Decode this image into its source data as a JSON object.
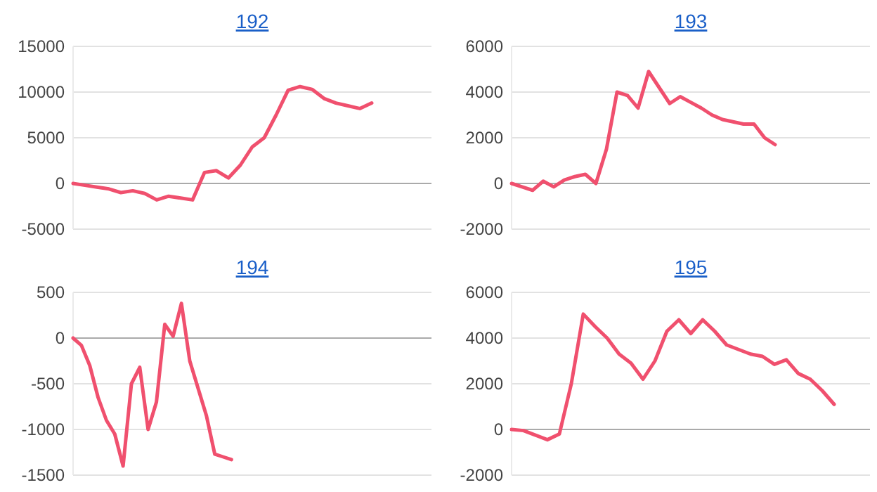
{
  "chart_data": [
    {
      "type": "line",
      "title": "192",
      "categories": [
        null,
        null,
        null,
        null,
        null,
        null,
        null,
        null,
        null,
        null,
        null,
        null,
        null,
        null,
        null,
        null,
        null,
        null,
        null,
        null,
        null,
        null,
        null,
        null,
        null,
        null,
        null,
        null,
        null,
        null,
        null
      ],
      "series": [
        {
          "color": "#f0506e",
          "values": [
            0,
            -200,
            -400,
            -600,
            -1000,
            -800,
            -1100,
            -1800,
            -1400,
            -1600,
            -1800,
            1200,
            1400,
            600,
            2000,
            4000,
            5000,
            7500,
            10200,
            10600,
            10300,
            9300,
            8800,
            8500,
            8200,
            8800,
            null,
            null,
            null,
            null,
            null
          ]
        }
      ],
      "ylim": [
        -5000,
        15000
      ],
      "yticks": [
        -5000,
        0,
        5000,
        10000,
        15000
      ],
      "grid": "y",
      "tick_labels": "y"
    },
    {
      "type": "line",
      "title": "193",
      "categories": [
        null,
        null,
        null,
        null,
        null,
        null,
        null,
        null,
        null,
        null,
        null,
        null,
        null,
        null,
        null,
        null,
        null,
        null,
        null,
        null,
        null,
        null,
        null,
        null,
        null,
        null,
        null,
        null,
        null,
        null,
        null,
        null,
        null,
        null,
        null
      ],
      "series": [
        {
          "color": "#f0506e",
          "values": [
            0,
            -150,
            -300,
            100,
            -150,
            150,
            300,
            400,
            0,
            1500,
            4000,
            3850,
            3300,
            4900,
            4200,
            3500,
            3800,
            3550,
            3300,
            3000,
            2800,
            2700,
            2600,
            2600,
            2000,
            1700,
            null,
            null,
            null,
            null,
            null,
            null,
            null,
            null,
            null
          ]
        }
      ],
      "ylim": [
        -2000,
        6000
      ],
      "yticks": [
        -2000,
        0,
        2000,
        4000,
        6000
      ],
      "grid": "y",
      "tick_labels": "y"
    },
    {
      "type": "line",
      "title": "194",
      "categories": [
        null,
        null,
        null,
        null,
        null,
        null,
        null,
        null,
        null,
        null,
        null,
        null,
        null,
        null,
        null,
        null,
        null,
        null,
        null,
        null,
        null,
        null,
        null,
        null,
        null,
        null,
        null,
        null,
        null,
        null,
        null,
        null,
        null,
        null,
        null,
        null,
        null,
        null,
        null,
        null,
        null,
        null,
        null,
        null
      ],
      "series": [
        {
          "color": "#f0506e",
          "values": [
            0,
            -80,
            -300,
            -650,
            -900,
            -1050,
            -1400,
            -500,
            -320,
            -1000,
            -700,
            150,
            20,
            380,
            -250,
            -550,
            -850,
            -1270,
            -1300,
            -1330,
            null,
            null,
            null,
            null,
            null,
            null,
            null,
            null,
            null,
            null,
            null,
            null,
            null,
            null,
            null,
            null,
            null,
            null,
            null,
            null,
            null,
            null,
            null,
            null
          ]
        }
      ],
      "ylim": [
        -1500,
        500
      ],
      "yticks": [
        -1500,
        -1000,
        -500,
        0,
        500
      ],
      "grid": "y",
      "tick_labels": "y"
    },
    {
      "type": "line",
      "title": "195",
      "categories": [
        null,
        null,
        null,
        null,
        null,
        null,
        null,
        null,
        null,
        null,
        null,
        null,
        null,
        null,
        null,
        null,
        null,
        null,
        null,
        null,
        null,
        null,
        null,
        null,
        null,
        null,
        null,
        null,
        null,
        null,
        null
      ],
      "series": [
        {
          "color": "#f0506e",
          "values": [
            0,
            -50,
            -250,
            -450,
            -200,
            2000,
            5050,
            4500,
            4000,
            3300,
            2900,
            2200,
            3000,
            4300,
            4800,
            4200,
            4800,
            4300,
            3700,
            3500,
            3300,
            3200,
            2850,
            3050,
            2450,
            2200,
            1700,
            1100,
            null,
            null,
            null
          ]
        }
      ],
      "ylim": [
        -2000,
        6000
      ],
      "yticks": [
        -2000,
        0,
        2000,
        4000,
        6000
      ],
      "grid": "y",
      "tick_labels": "y"
    }
  ]
}
